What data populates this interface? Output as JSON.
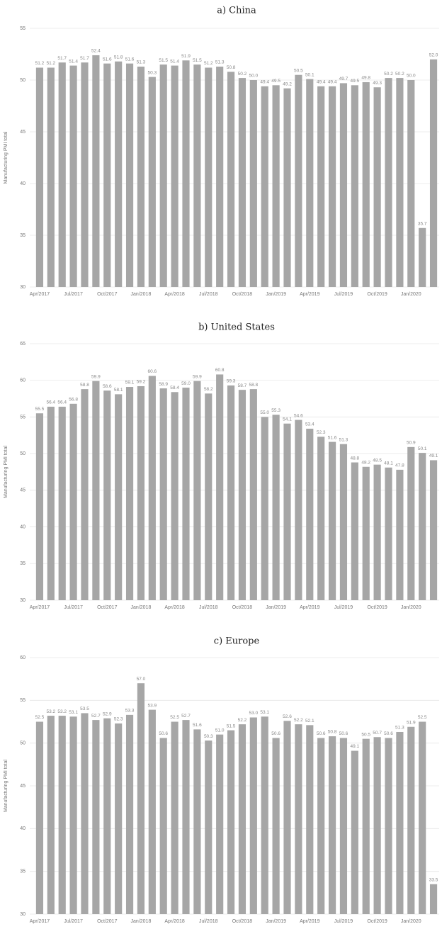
{
  "chart_data": [
    {
      "type": "bar",
      "title": "a) China",
      "y_label": "Manufacturing PMI total",
      "color": "#a6a6a6",
      "grid": true,
      "categories": [
        "Apr/2017",
        null,
        null,
        "Jul/2017",
        null,
        null,
        "Oct/2017",
        null,
        null,
        "Jan/2018",
        null,
        null,
        "Apr/2018",
        null,
        null,
        "Jul/2018",
        null,
        null,
        "Oct/2018",
        null,
        null,
        "Jan/2019",
        null,
        null,
        "Apr/2019",
        null,
        null,
        "Jul/2019",
        null,
        null,
        "Oct/2019",
        null,
        null,
        "Jan/2020",
        null,
        null
      ],
      "values": [
        51.2,
        51.2,
        51.7,
        51.4,
        51.7,
        52.4,
        51.6,
        51.8,
        51.6,
        51.3,
        50.3,
        51.5,
        51.4,
        51.9,
        51.5,
        51.2,
        51.3,
        50.8,
        50.2,
        50.0,
        49.4,
        49.5,
        49.2,
        50.5,
        50.1,
        49.4,
        49.4,
        49.7,
        49.5,
        49.8,
        49.3,
        50.2,
        50.2,
        50.0,
        35.7,
        52.0
      ],
      "value_labels": [
        "51.2",
        "51.2",
        "51.7",
        "51.4",
        "51.7",
        "52.4",
        "51.6",
        "51.8",
        "51.6",
        "51.3",
        "50.3",
        "51.5",
        "51.4",
        "51.9",
        "51.5",
        "51.2",
        "51.3",
        "50.8",
        "50.2",
        "50.0",
        "49.4",
        "49.5",
        "49.2",
        "50.5",
        "50.1",
        "49.4",
        "49.4",
        "49.7",
        "49.5",
        "49.8",
        "49.3",
        "50.2",
        "50.2",
        "50.0",
        "35.7",
        "52.0"
      ],
      "ylim": [
        30,
        55
      ],
      "yticks": [
        30,
        35,
        40,
        45,
        50,
        55
      ]
    },
    {
      "type": "bar",
      "title": "b) United States",
      "y_label": "Manufacturing PMI total",
      "color": "#a6a6a6",
      "grid": true,
      "categories": [
        "Apr/2017",
        null,
        null,
        "Jul/2017",
        null,
        null,
        "Oct/2017",
        null,
        null,
        "Jan/2018",
        null,
        null,
        "Apr/2018",
        null,
        null,
        "Jul/2018",
        null,
        null,
        "Oct/2018",
        null,
        null,
        "Jan/2019",
        null,
        null,
        "Apr/2019",
        null,
        null,
        "Jul/2019",
        null,
        null,
        "Oct/2019",
        null,
        null,
        "Jan/2020",
        null,
        null
      ],
      "values": [
        55.5,
        56.4,
        56.4,
        56.8,
        58.8,
        59.9,
        58.6,
        58.1,
        59.1,
        59.2,
        60.6,
        58.9,
        58.4,
        59.0,
        59.9,
        58.2,
        60.8,
        59.3,
        58.7,
        58.8,
        55.0,
        55.3,
        54.1,
        54.6,
        53.4,
        52.3,
        51.6,
        51.3,
        48.8,
        48.2,
        48.5,
        48.1,
        47.8,
        50.9,
        50.1,
        49.1
      ],
      "value_labels": [
        "55.5",
        "56.4",
        "56.4",
        "56.8",
        "58.8",
        "59.9",
        "58.6",
        "58.1",
        "59.1",
        "59.2",
        "60.6",
        "58.9",
        "58.4",
        "59.0",
        "59.9",
        "58.2",
        "60.8",
        "59.3",
        "58.7",
        "58.8",
        "55.0",
        "55.3",
        "54.1",
        "54.6",
        "53.4",
        "52.3",
        "51.6",
        "51.3",
        "48.8",
        "48.2",
        "48.5",
        "48.1",
        "47.8",
        "50.9",
        "50.1",
        "49.1"
      ],
      "ylim": [
        30,
        65
      ],
      "yticks": [
        30,
        35,
        40,
        45,
        50,
        55,
        60,
        65
      ]
    },
    {
      "type": "bar",
      "title": "c) Europe",
      "y_label": "Manufacturing PMI total",
      "color": "#a6a6a6",
      "grid": true,
      "categories": [
        "Apr/2017",
        null,
        null,
        "Jul/2017",
        null,
        null,
        "Oct/2017",
        null,
        null,
        "Jan/2018",
        null,
        null,
        "Apr/2018",
        null,
        null,
        "Jul/2018",
        null,
        null,
        "Oct/2018",
        null,
        null,
        "Jan/2019",
        null,
        null,
        "Apr/2019",
        null,
        null,
        "Jul/2019",
        null,
        null,
        "Oct/2019",
        null,
        null,
        "Jan/2020",
        null,
        null
      ],
      "values": [
        52.5,
        53.2,
        53.2,
        53.1,
        53.5,
        52.7,
        52.9,
        52.3,
        53.3,
        57.0,
        53.9,
        50.6,
        52.5,
        52.7,
        51.6,
        50.3,
        51.0,
        51.5,
        52.2,
        53.0,
        53.1,
        50.6,
        52.6,
        52.2,
        52.1,
        50.6,
        50.8,
        50.6,
        49.1,
        50.5,
        50.7,
        50.6,
        51.3,
        51.9,
        52.5,
        33.5
      ],
      "value_labels": [
        "52.5",
        "53.2",
        "53.2",
        "53.1",
        "53.5",
        "52.7",
        "52.9",
        "52.3",
        "53.3",
        "57.0",
        "53.9",
        "50.6",
        "52.5",
        "52.7",
        "51.6",
        "50.3",
        "51.0",
        "51.5",
        "52.2",
        "53.0",
        "53.1",
        "50.6",
        "52.6",
        "52.2",
        "52.1",
        "50.6",
        "50.8",
        "50.6",
        "49.1",
        "50.5",
        "50.7",
        "50.6",
        "51.3",
        "51.9",
        "52.5",
        "33.5"
      ],
      "ylim": [
        30,
        60
      ],
      "yticks": [
        30,
        35,
        40,
        45,
        50,
        55,
        60
      ]
    }
  ]
}
